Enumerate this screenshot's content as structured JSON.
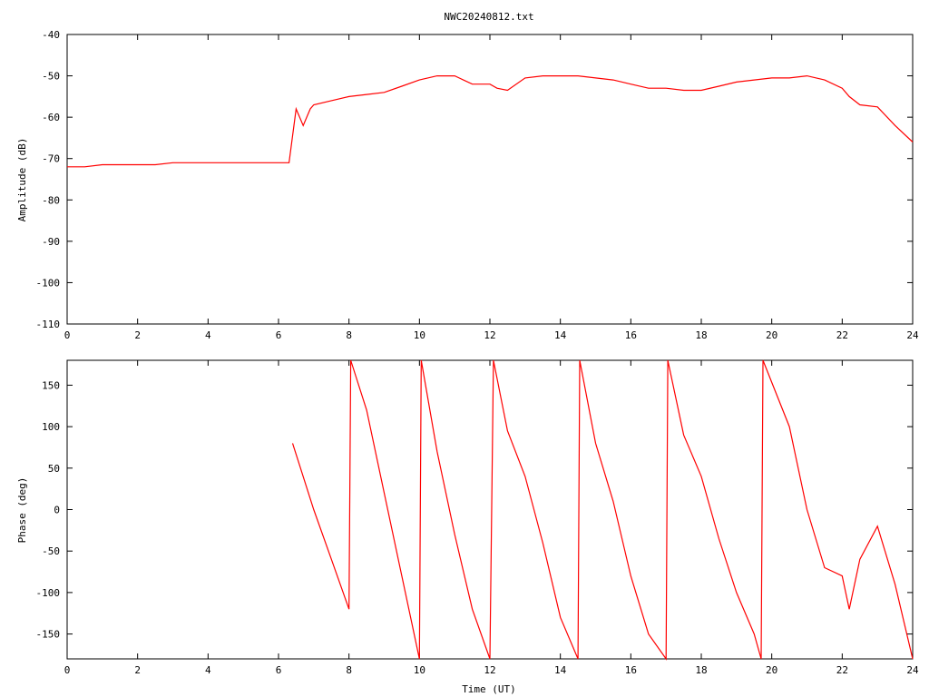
{
  "chart_data": [
    {
      "type": "line",
      "title": "NWC20240812.txt",
      "xlabel": "",
      "ylabel": "Amplitude (dB)",
      "xlim": [
        0,
        24
      ],
      "ylim": [
        -110,
        -40
      ],
      "x_ticks": [
        "0",
        "2",
        "4",
        "6",
        "8",
        "10",
        "12",
        "14",
        "16",
        "18",
        "20",
        "22",
        "24"
      ],
      "y_ticks": [
        "-40",
        "-50",
        "-60",
        "-70",
        "-80",
        "-90",
        "-100",
        "-110"
      ],
      "grid": false,
      "line_color": "#ff0000",
      "series": [
        {
          "x": [
            0,
            0.5,
            1,
            1.5,
            2,
            2.5,
            3,
            3.5,
            4,
            4.5,
            5,
            5.5,
            6,
            6.3,
            6.5,
            6.7,
            6.9,
            7,
            7.5,
            8,
            8.5,
            9,
            9.5,
            10,
            10.5,
            11,
            11.5,
            12,
            12.2,
            12.5,
            13,
            13.5,
            14,
            14.5,
            15,
            15.5,
            16,
            16.5,
            17,
            17.5,
            18,
            18.5,
            19,
            19.5,
            20,
            20.5,
            21,
            21.5,
            22,
            22.2,
            22.5,
            23,
            23.5,
            24
          ],
          "y": [
            -72,
            -72,
            -71.5,
            -71.5,
            -71.5,
            -71.5,
            -71,
            -71,
            -71,
            -71,
            -71,
            -71,
            -71,
            -71,
            -58,
            -62,
            -58,
            -57,
            -56,
            -55,
            -54.5,
            -54,
            -52.5,
            -51,
            -50,
            -50,
            -52,
            -52,
            -53,
            -53.5,
            -50.5,
            -50,
            -50,
            -50,
            -50.5,
            -51,
            -52,
            -53,
            -53,
            -53.5,
            -53.5,
            -52.5,
            -51.5,
            -51,
            -50.5,
            -50.5,
            -50,
            -51,
            -53,
            -55,
            -57,
            -57.5,
            -62,
            -66
          ]
        }
      ]
    },
    {
      "type": "line",
      "title": "",
      "xlabel": "Time (UT)",
      "ylabel": "Phase (deg)",
      "xlim": [
        0,
        24
      ],
      "ylim": [
        -180,
        180
      ],
      "x_ticks": [
        "0",
        "2",
        "4",
        "6",
        "8",
        "10",
        "12",
        "14",
        "16",
        "18",
        "20",
        "22",
        "24"
      ],
      "y_ticks": [
        "150",
        "100",
        "50",
        "0",
        "-50",
        "-100",
        "-150"
      ],
      "grid": false,
      "line_color": "#ff0000",
      "series": [
        {
          "x": [
            6.4,
            7,
            7.5,
            8,
            8.05,
            8.5,
            9,
            9.5,
            10,
            10.05,
            10.5,
            11,
            11.5,
            12,
            12.1,
            12.5,
            13,
            13.5,
            14,
            14.5,
            14.55,
            15,
            15.5,
            16,
            16.5,
            17,
            17.05,
            17.5,
            18,
            18.5,
            19,
            19.5,
            19.7,
            19.75,
            20.5,
            21,
            21.5,
            22,
            22.2,
            22.5,
            23,
            23.5,
            24
          ],
          "y": [
            80,
            0,
            -60,
            -120,
            180,
            120,
            20,
            -80,
            -180,
            180,
            70,
            -30,
            -120,
            -180,
            180,
            95,
            40,
            -40,
            -130,
            -180,
            180,
            80,
            10,
            -80,
            -150,
            -180,
            180,
            90,
            40,
            -35,
            -100,
            -150,
            -180,
            180,
            100,
            0,
            -70,
            -80,
            -120,
            -60,
            -20,
            -90,
            -180
          ]
        }
      ]
    }
  ]
}
